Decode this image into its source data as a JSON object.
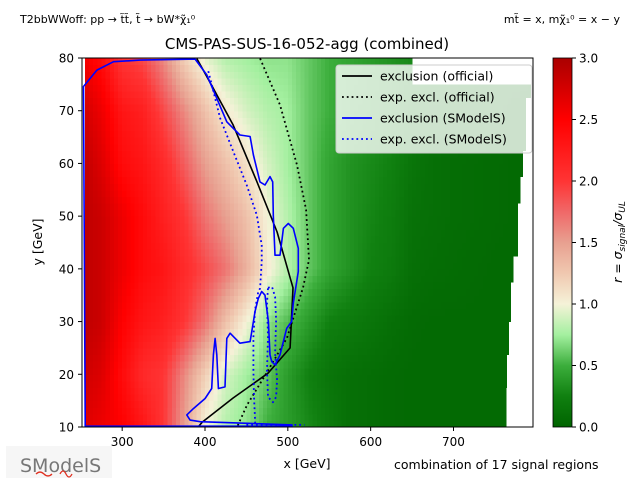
{
  "header": {
    "process": "T2bbWWoff: pp → t̃t̃, t̃ → bW*χ̃₁⁰",
    "masses": "mt̃ = x, mχ̃₁⁰ = x − y"
  },
  "footer": {
    "note": "combination of 17 signal regions",
    "logo_text": "SModelS"
  },
  "chart_data": {
    "type": "heatmap",
    "title": "CMS-PAS-SUS-16-052-agg (combined)",
    "xlabel": "x [GeV]",
    "ylabel": "y [GeV]",
    "xlim": [
      251.5,
      796
    ],
    "ylim": [
      10,
      80
    ],
    "xticks": [
      300,
      400,
      500,
      600,
      700
    ],
    "xtick_labels": [
      "300",
      "400",
      "500",
      "600",
      "700"
    ],
    "yticks": [
      10,
      20,
      30,
      40,
      50,
      60,
      70,
      80
    ],
    "ytick_labels": [
      "10",
      "20",
      "30",
      "40",
      "50",
      "60",
      "70",
      "80"
    ],
    "colorbar": {
      "label_main": "r = σ",
      "label_sub1": "signal",
      "label_mid": "/σ",
      "label_sub2": "UL",
      "range": [
        0,
        3
      ],
      "ticks": [
        0,
        0.5,
        1,
        1.5,
        2,
        2.5,
        3
      ],
      "tick_labels": [
        "0.0",
        "0.5",
        "1.0",
        "1.5",
        "2.0",
        "2.5",
        "3.0"
      ],
      "colormap": [
        [
          0.0,
          "#006400"
        ],
        [
          0.25,
          "#108010"
        ],
        [
          0.5,
          "#3cae3c"
        ],
        [
          0.75,
          "#a4f0a0"
        ],
        [
          1.0,
          "#f5f2d8"
        ],
        [
          1.25,
          "#f0c8b0"
        ],
        [
          1.5,
          "#e8a090"
        ],
        [
          1.75,
          "#f06868"
        ],
        [
          2.0,
          "#ff3434"
        ],
        [
          2.5,
          "#ff0000"
        ],
        [
          3.0,
          "#aa0000"
        ]
      ]
    },
    "grid_x": [
      250,
      275,
      300,
      325,
      350,
      375,
      400,
      425,
      450,
      475,
      500,
      525,
      550,
      575,
      600,
      625,
      650,
      675,
      700,
      725,
      750,
      775,
      800
    ],
    "grid_y": [
      10,
      20,
      30,
      40,
      50,
      60,
      70,
      80
    ],
    "r_values": [
      [
        2.7,
        2.6,
        2.5,
        2.3,
        2.0,
        1.5,
        1.0,
        0.8,
        0.7,
        0.5,
        0.4,
        0.3,
        0.2,
        0.1,
        0.08,
        0.06,
        0.05,
        0.05,
        0.05,
        0.05,
        0.05,
        0.05,
        0.05
      ],
      [
        2.8,
        2.7,
        2.4,
        2.1,
        2.0,
        1.6,
        1.2,
        0.9,
        0.75,
        0.6,
        0.4,
        0.25,
        0.15,
        0.1,
        0.08,
        0.06,
        0.05,
        0.05,
        0.05,
        0.05,
        0.05,
        0.05,
        0.05
      ],
      [
        2.9,
        2.8,
        2.5,
        2.3,
        2.2,
        2.0,
        1.7,
        1.3,
        1.0,
        0.7,
        0.55,
        0.4,
        0.25,
        0.2,
        0.15,
        0.1,
        0.06,
        0.05,
        0.05,
        0.05,
        0.05,
        0.05,
        0.05
      ],
      [
        2.9,
        2.8,
        2.6,
        2.4,
        2.3,
        2.1,
        1.9,
        1.7,
        1.4,
        1.05,
        0.8,
        0.6,
        0.45,
        0.35,
        0.25,
        0.2,
        0.1,
        0.08,
        0.07,
        0.06,
        0.05,
        0.05,
        0.05
      ],
      [
        2.9,
        2.8,
        2.6,
        2.4,
        2.2,
        2.0,
        1.7,
        1.5,
        1.3,
        1.0,
        0.8,
        0.6,
        0.45,
        0.35,
        0.28,
        0.22,
        0.12,
        0.1,
        0.08,
        0.07,
        0.06,
        0.05,
        0.05
      ],
      [
        2.9,
        2.7,
        2.4,
        2.3,
        2.1,
        1.8,
        1.5,
        1.3,
        1.1,
        0.9,
        0.75,
        0.6,
        0.45,
        0.35,
        0.3,
        0.25,
        0.15,
        0.1,
        0.08,
        0.07,
        0.06,
        0.05,
        0.05
      ],
      [
        2.8,
        2.6,
        2.3,
        2.2,
        1.9,
        1.6,
        1.3,
        1.05,
        0.9,
        0.8,
        0.75,
        0.6,
        0.5,
        0.4,
        0.35,
        0.3,
        0.2,
        0.15,
        0.12,
        0.1,
        0.08,
        0.06,
        0.05
      ],
      [
        2.6,
        2.4,
        2.0,
        1.9,
        1.6,
        1.2,
        0.95,
        0.8,
        0.75,
        0.7,
        0.7,
        0.6,
        0.5,
        0.45,
        0.4,
        0.35,
        0.3,
        0.25,
        0.2,
        0.15,
        0.12,
        0.1,
        0.08
      ]
    ],
    "data_xmin": 255,
    "right_edge": [
      [
        80,
        650
      ],
      [
        75.3,
        793
      ],
      [
        72.6,
        787
      ],
      [
        62,
        783
      ],
      [
        56.9,
        780
      ],
      [
        53,
        777
      ],
      [
        43,
        772
      ],
      [
        37,
        769
      ],
      [
        30.5,
        766
      ],
      [
        24,
        764
      ],
      [
        17,
        763
      ]
    ],
    "legend": {
      "placement": "top-right",
      "entries": [
        {
          "label": "exclusion (official)",
          "color": "#000000",
          "style": "solid"
        },
        {
          "label": "exp. excl. (official)",
          "color": "#000000",
          "style": "dotted"
        },
        {
          "label": "exclusion (SModelS)",
          "color": "#0000ff",
          "style": "solid"
        },
        {
          "label": "exp. excl. (SModelS)",
          "color": "#0000ff",
          "style": "dotted"
        }
      ]
    },
    "curves": [
      {
        "name": "exclusion-official",
        "color": "#000000",
        "style": "solid",
        "closed": false,
        "points": [
          [
            390.1,
            79.9
          ],
          [
            409.8,
            74.3
          ],
          [
            433.9,
            67.3
          ],
          [
            462.8,
            56.5
          ],
          [
            487.0,
            47.0
          ],
          [
            506.3,
            36.4
          ],
          [
            502.7,
            25.0
          ],
          [
            476.1,
            20.2
          ],
          [
            433.9,
            15.5
          ],
          [
            396.5,
            10.9
          ],
          [
            391.7,
            10.0
          ]
        ]
      },
      {
        "name": "expected-exclusion-official",
        "color": "#000000",
        "style": "dotted",
        "closed": false,
        "points": [
          [
            466.5,
            79.9
          ],
          [
            490.6,
            71.1
          ],
          [
            511.1,
            59.7
          ],
          [
            522.0,
            51.2
          ],
          [
            525.6,
            41.7
          ],
          [
            518.3,
            36.4
          ],
          [
            499.0,
            26.9
          ],
          [
            474.9,
            20.4
          ],
          [
            450.8,
            14.2
          ],
          [
            438.7,
            10.0
          ]
        ]
      },
      {
        "name": "exclusion-smodels",
        "color": "#0000ff",
        "style": "solid",
        "closed": true,
        "points": [
          [
            255.4,
            10.7
          ],
          [
            253.3,
            74.6
          ],
          [
            269.5,
            77.7
          ],
          [
            289.5,
            79.3
          ],
          [
            321.7,
            79.6
          ],
          [
            388.1,
            79.8
          ],
          [
            402.2,
            76.8
          ],
          [
            426.3,
            67.9
          ],
          [
            442.1,
            65.4
          ],
          [
            454.4,
            65.1
          ],
          [
            458.4,
            61.6
          ],
          [
            466.4,
            56.5
          ],
          [
            472.4,
            55.9
          ],
          [
            478.5,
            57.5
          ],
          [
            481.7,
            56.5
          ],
          [
            482.5,
            50.2
          ],
          [
            484.5,
            42.6
          ],
          [
            490.6,
            42.6
          ],
          [
            492.6,
            45.1
          ],
          [
            494.6,
            47.7
          ],
          [
            500.6,
            48.6
          ],
          [
            506.6,
            47.7
          ],
          [
            512.7,
            43.9
          ],
          [
            512.7,
            39.5
          ],
          [
            506.6,
            33.5
          ],
          [
            504.6,
            30.0
          ],
          [
            498.6,
            28.7
          ],
          [
            490.6,
            23.7
          ],
          [
            484.5,
            21.8
          ],
          [
            480.5,
            22.4
          ],
          [
            478.5,
            23.7
          ],
          [
            476.5,
            30.0
          ],
          [
            472.4,
            35.0
          ],
          [
            468.4,
            35.7
          ],
          [
            464.4,
            34.4
          ],
          [
            460.4,
            31.9
          ],
          [
            458.4,
            30.0
          ],
          [
            454.4,
            26.2
          ],
          [
            442.1,
            25.9
          ],
          [
            430.3,
            27.8
          ],
          [
            426.3,
            26.8
          ],
          [
            424.2,
            17.6
          ],
          [
            416.2,
            17.3
          ],
          [
            414.2,
            23.7
          ],
          [
            412.2,
            26.8
          ],
          [
            410.1,
            23.7
          ],
          [
            408.1,
            17.3
          ],
          [
            400.1,
            15.4
          ],
          [
            386.0,
            13.5
          ],
          [
            378.0,
            12.3
          ],
          [
            382.0,
            11.3
          ],
          [
            394.1,
            11.0
          ],
          [
            505.0,
            10.4
          ],
          [
            505.0,
            10.15
          ],
          [
            255.4,
            10.15
          ]
        ]
      },
      {
        "name": "expected-exclusion-smodels",
        "color": "#0000ff",
        "style": "dotted",
        "closed": false,
        "points": [
          [
            404.0,
            77.5
          ],
          [
            408.2,
            74.9
          ],
          [
            418.2,
            68.6
          ],
          [
            434.3,
            62.2
          ],
          [
            450.4,
            55.9
          ],
          [
            462.5,
            50.2
          ],
          [
            468.5,
            44.5
          ],
          [
            468.5,
            41.4
          ],
          [
            466.5,
            36.3
          ],
          [
            464.4,
            35.7
          ],
          [
            460.4,
            32.2
          ],
          [
            458.4,
            27.1
          ],
          [
            458.4,
            20.8
          ],
          [
            459.2,
            15.7
          ],
          [
            460.4,
            11.6
          ],
          [
            460.6,
            10.0
          ]
        ]
      },
      {
        "name": "expected-exclusion-smodels-loop",
        "color": "#0000ff",
        "style": "dotted",
        "closed": true,
        "points": [
          [
            476.1,
            36.4
          ],
          [
            480.9,
            36.6
          ],
          [
            484.6,
            34.7
          ],
          [
            485.8,
            30.3
          ],
          [
            484.6,
            24.0
          ],
          [
            487.0,
            18.9
          ],
          [
            485.8,
            15.7
          ],
          [
            482.1,
            14.7
          ],
          [
            476.1,
            15.7
          ],
          [
            474.9,
            20.8
          ],
          [
            476.1,
            27.1
          ],
          [
            474.9,
            33.5
          ]
        ]
      },
      {
        "name": "expected-exclusion-smodels-edge",
        "color": "#0000ff",
        "style": "dotted",
        "closed": false,
        "points": [
          [
            450.0,
            10.4
          ],
          [
            520.0,
            10.4
          ]
        ]
      }
    ]
  }
}
